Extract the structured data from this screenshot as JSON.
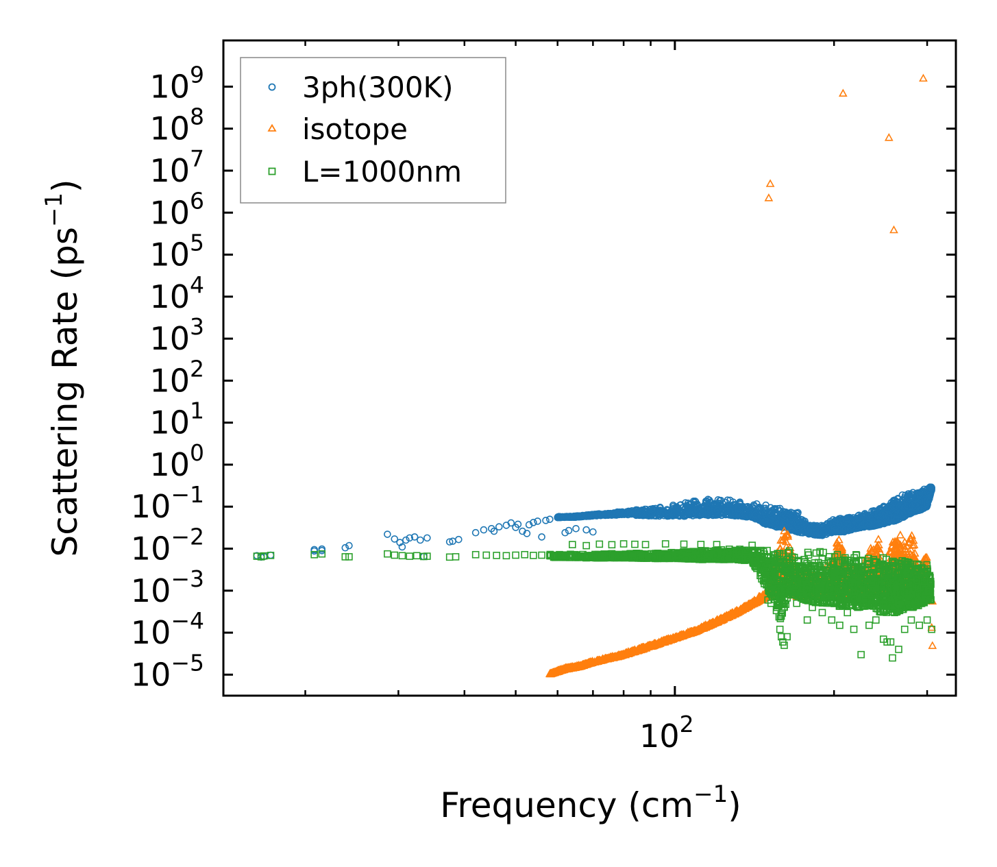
{
  "chart_data": {
    "type": "scatter",
    "title": "",
    "xlabel": "Frequency (cm",
    "xlabel_sup": "−1",
    "xlabel_end": ")",
    "ylabel": "Scattering Rate (ps",
    "ylabel_sup": "−1",
    "ylabel_end": ")",
    "xscale": "log",
    "yscale": "log",
    "xlim": [
      14,
      340
    ],
    "ylim_exp": [
      -5.5,
      10.1
    ],
    "x_major_ticks": [
      {
        "value": 100,
        "base": "10",
        "exp": "2"
      }
    ],
    "x_minor_ticks": [
      20,
      30,
      40,
      50,
      60,
      70,
      80,
      90,
      200,
      300
    ],
    "y_ticks": [
      {
        "exp_value": 9,
        "base": "10",
        "exp": "9"
      },
      {
        "exp_value": 8,
        "base": "10",
        "exp": "8"
      },
      {
        "exp_value": 7,
        "base": "10",
        "exp": "7"
      },
      {
        "exp_value": 6,
        "base": "10",
        "exp": "6"
      },
      {
        "exp_value": 5,
        "base": "10",
        "exp": "5"
      },
      {
        "exp_value": 4,
        "base": "10",
        "exp": "4"
      },
      {
        "exp_value": 3,
        "base": "10",
        "exp": "3"
      },
      {
        "exp_value": 2,
        "base": "10",
        "exp": "2"
      },
      {
        "exp_value": 1,
        "base": "10",
        "exp": "1"
      },
      {
        "exp_value": 0,
        "base": "10",
        "exp": "0"
      },
      {
        "exp_value": -1,
        "base": "10",
        "exp": "−1"
      },
      {
        "exp_value": -2,
        "base": "10",
        "exp": "−2"
      },
      {
        "exp_value": -3,
        "base": "10",
        "exp": "−3"
      },
      {
        "exp_value": -4,
        "base": "10",
        "exp": "−4"
      },
      {
        "exp_value": -5,
        "base": "10",
        "exp": "−5"
      }
    ],
    "legend_position": "upper-left",
    "series": [
      {
        "name": "3ph(300K)",
        "marker": "circle",
        "color": "#1f77b4",
        "points": [
          [
            16.2,
            0.0068
          ],
          [
            16.5,
            0.0063
          ],
          [
            16.7,
            0.0065
          ],
          [
            17.2,
            0.007
          ],
          [
            20.8,
            0.0095
          ],
          [
            20.8,
            0.0088
          ],
          [
            21.5,
            0.0098
          ],
          [
            21.5,
            0.009
          ],
          [
            23.8,
            0.0105
          ],
          [
            24.2,
            0.0118
          ],
          [
            28.6,
            0.022
          ],
          [
            29.5,
            0.017
          ],
          [
            30.2,
            0.014
          ],
          [
            30.5,
            0.011
          ],
          [
            31.0,
            0.016
          ],
          [
            31.5,
            0.018
          ],
          [
            32.2,
            0.019
          ],
          [
            33.0,
            0.016
          ],
          [
            33.5,
            0.0065
          ],
          [
            34.0,
            0.018
          ],
          [
            37.5,
            0.0145
          ],
          [
            38.0,
            0.015
          ],
          [
            39.0,
            0.0165
          ],
          [
            42.0,
            0.024
          ],
          [
            43.5,
            0.028
          ],
          [
            45.0,
            0.03
          ],
          [
            45.5,
            0.026
          ],
          [
            46.5,
            0.033
          ],
          [
            48.0,
            0.036
          ],
          [
            49.0,
            0.041
          ],
          [
            50.0,
            0.032
          ],
          [
            50.5,
            0.038
          ],
          [
            51.5,
            0.026
          ],
          [
            52.5,
            0.023
          ],
          [
            53.0,
            0.037
          ],
          [
            54.0,
            0.042
          ],
          [
            55.0,
            0.045
          ],
          [
            56.0,
            0.019
          ],
          [
            57.0,
            0.047
          ],
          [
            58.0,
            0.05
          ],
          [
            62.0,
            0.024
          ],
          [
            63.0,
            0.027
          ],
          [
            65.0,
            0.03
          ],
          [
            68.0,
            0.028
          ],
          [
            70.0,
            0.025
          ]
        ],
        "dense_band": [
          [
            60,
            0.058,
            0.055
          ],
          [
            65,
            0.06,
            0.056
          ],
          [
            70,
            0.066,
            0.06
          ],
          [
            80,
            0.078,
            0.064
          ],
          [
            90,
            0.092,
            0.06
          ],
          [
            100,
            0.115,
            0.058
          ],
          [
            110,
            0.15,
            0.06
          ],
          [
            120,
            0.155,
            0.062
          ],
          [
            130,
            0.14,
            0.06
          ],
          [
            140,
            0.125,
            0.055
          ],
          [
            150,
            0.11,
            0.035
          ],
          [
            160,
            0.1,
            0.03
          ],
          [
            170,
            0.08,
            0.025
          ],
          [
            180,
            0.04,
            0.022
          ],
          [
            190,
            0.036,
            0.02
          ],
          [
            200,
            0.05,
            0.025
          ],
          [
            210,
            0.058,
            0.025
          ],
          [
            220,
            0.06,
            0.03
          ],
          [
            230,
            0.07,
            0.032
          ],
          [
            240,
            0.085,
            0.035
          ],
          [
            250,
            0.12,
            0.04
          ],
          [
            260,
            0.16,
            0.045
          ],
          [
            270,
            0.2,
            0.055
          ],
          [
            280,
            0.23,
            0.07
          ],
          [
            290,
            0.26,
            0.08
          ],
          [
            300,
            0.28,
            0.1
          ],
          [
            306,
            0.3,
            0.25
          ]
        ]
      },
      {
        "name": "isotope",
        "marker": "triangle",
        "color": "#ff7f0e",
        "points": [
          [
            150.5,
            2200000.0
          ],
          [
            151.5,
            4800000.0
          ],
          [
            208.0,
            680000000.0
          ],
          [
            254.0,
            60000000.0
          ],
          [
            259.5,
            380000.0
          ],
          [
            295.0,
            1550000000.0
          ],
          [
            306.0,
            0.00013
          ],
          [
            307.0,
            4.8e-05
          ],
          [
            307.0,
            0.00055
          ]
        ],
        "dense_band": [
          [
            58,
            1.05e-05,
            1e-05
          ],
          [
            62,
            1.45e-05,
            1.3e-05
          ],
          [
            66,
            1.65e-05,
            1.5e-05
          ],
          [
            70,
            2.1e-05,
            1.9e-05
          ],
          [
            80,
            3.2e-05,
            2.8e-05
          ],
          [
            90,
            5.2e-05,
            4.5e-05
          ],
          [
            100,
            8e-05,
            7e-05
          ],
          [
            110,
            0.00012,
            0.000105
          ],
          [
            120,
            0.0002,
            0.00017
          ],
          [
            130,
            0.00032,
            0.00027
          ],
          [
            140,
            0.00055,
            0.00045
          ],
          [
            150,
            0.001,
            0.0007
          ],
          [
            158,
            0.02,
            0.001
          ],
          [
            163,
            0.035,
            0.0008
          ],
          [
            170,
            0.003,
            0.0007
          ],
          [
            180,
            0.004,
            0.0007
          ],
          [
            190,
            0.0025,
            0.0007
          ],
          [
            200,
            0.008,
            0.0008
          ],
          [
            205,
            0.025,
            0.0009
          ],
          [
            210,
            0.004,
            0.0008
          ],
          [
            225,
            0.003,
            0.0008
          ],
          [
            240,
            0.03,
            0.0009
          ],
          [
            250,
            0.004,
            0.0008
          ],
          [
            262,
            0.04,
            0.001
          ],
          [
            270,
            0.015,
            0.001
          ],
          [
            280,
            0.03,
            0.001
          ],
          [
            290,
            0.004,
            0.001
          ],
          [
            300,
            0.008,
            0.001
          ]
        ]
      },
      {
        "name": "L=1000nm",
        "marker": "square",
        "color": "#2ca02c",
        "points": [
          [
            16.2,
            0.0066
          ],
          [
            16.5,
            0.0064
          ],
          [
            16.7,
            0.0067
          ],
          [
            17.2,
            0.0069
          ],
          [
            20.8,
            0.0072
          ],
          [
            21.5,
            0.0075
          ],
          [
            23.8,
            0.0064
          ],
          [
            24.2,
            0.0064
          ],
          [
            28.6,
            0.0075
          ],
          [
            29.5,
            0.007
          ],
          [
            30.5,
            0.0068
          ],
          [
            31.5,
            0.0066
          ],
          [
            32.5,
            0.0068
          ],
          [
            33.5,
            0.0065
          ],
          [
            34.0,
            0.0066
          ],
          [
            37.5,
            0.0063
          ],
          [
            38.5,
            0.0064
          ],
          [
            42.0,
            0.0072
          ],
          [
            44.0,
            0.007
          ],
          [
            46.0,
            0.0069
          ],
          [
            48.0,
            0.0068
          ],
          [
            50.0,
            0.007
          ],
          [
            52.0,
            0.0072
          ],
          [
            54.0,
            0.0069
          ],
          [
            56.0,
            0.007
          ],
          [
            58.0,
            0.0068
          ],
          [
            64.0,
            0.0125
          ],
          [
            68.0,
            0.0118
          ],
          [
            72.0,
            0.0128
          ],
          [
            76.0,
            0.0124
          ],
          [
            80.0,
            0.013
          ],
          [
            84.0,
            0.0127
          ],
          [
            88.0,
            0.0125
          ],
          [
            96.0,
            0.013
          ],
          [
            104.0,
            0.0128
          ],
          [
            112.0,
            0.0126
          ],
          [
            120.0,
            0.0125
          ],
          [
            140.0,
            0.012
          ],
          [
            150.0,
            0.0006
          ],
          [
            152.0,
            0.0005
          ],
          [
            156.0,
            0.0004
          ],
          [
            158.0,
            0.00012
          ],
          [
            159.0,
            8e-05
          ],
          [
            160.0,
            6e-05
          ],
          [
            161.0,
            5e-05
          ],
          [
            163.0,
            8e-05
          ],
          [
            170.0,
            0.0005
          ],
          [
            178.0,
            0.0002
          ],
          [
            182.0,
            0.0004
          ],
          [
            190.0,
            0.0003
          ],
          [
            198.0,
            0.0002
          ],
          [
            205.0,
            0.00015
          ],
          [
            212.0,
            0.0003
          ],
          [
            218.0,
            0.00012
          ],
          [
            225.0,
            3e-05
          ],
          [
            233.0,
            0.00015
          ],
          [
            240.0,
            0.0002
          ],
          [
            248.0,
            7e-05
          ],
          [
            252.0,
            6e-05
          ],
          [
            256.0,
            6e-05
          ],
          [
            258.0,
            2.5e-05
          ],
          [
            265.0,
            4e-05
          ],
          [
            272.0,
            0.00012
          ],
          [
            280.0,
            0.0002
          ],
          [
            290.0,
            0.00015
          ],
          [
            300.0,
            0.0002
          ],
          [
            306.0,
            0.00012
          ]
        ],
        "dense_band": [
          [
            58,
            0.0075,
            0.0062
          ],
          [
            70,
            0.0075,
            0.006
          ],
          [
            80,
            0.0078,
            0.006
          ],
          [
            90,
            0.0078,
            0.0058
          ],
          [
            100,
            0.0085,
            0.0058
          ],
          [
            110,
            0.009,
            0.0055
          ],
          [
            120,
            0.0095,
            0.0055
          ],
          [
            130,
            0.01,
            0.0055
          ],
          [
            140,
            0.01,
            0.005
          ],
          [
            150,
            0.01,
            0.001
          ],
          [
            158,
            0.01,
            0.0002
          ],
          [
            165,
            0.01,
            0.0008
          ],
          [
            175,
            0.0095,
            0.0006
          ],
          [
            185,
            0.009,
            0.0005
          ],
          [
            195,
            0.0085,
            0.0005
          ],
          [
            205,
            0.0085,
            0.0004
          ],
          [
            215,
            0.008,
            0.0004
          ],
          [
            225,
            0.008,
            0.0004
          ],
          [
            235,
            0.0075,
            0.0004
          ],
          [
            245,
            0.007,
            0.0003
          ],
          [
            255,
            0.0065,
            0.0003
          ],
          [
            265,
            0.006,
            0.0003
          ],
          [
            275,
            0.0055,
            0.0004
          ],
          [
            285,
            0.005,
            0.0004
          ],
          [
            295,
            0.0045,
            0.0005
          ],
          [
            305,
            0.004,
            0.0006
          ]
        ]
      }
    ]
  }
}
